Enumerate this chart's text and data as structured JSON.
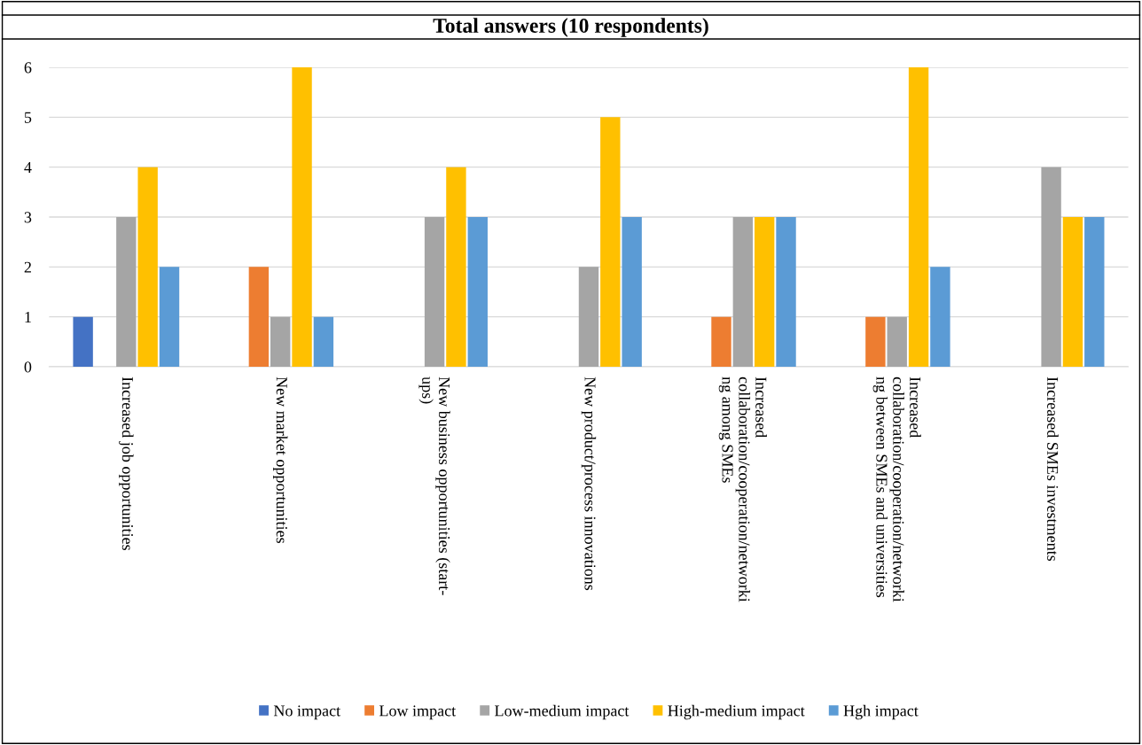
{
  "chart_data": {
    "type": "bar",
    "title": "Total answers (10 respondents)",
    "categories": [
      "Increased job opportunities",
      "New market opportunities",
      "New business opportunities (start-\nups)",
      "New product/process innovations",
      "Increased\ncollaboration/cooperation/networki\nng among SMEs",
      "Increased\ncollaboration/cooperation/networki\nng between SMEs and universities",
      "Increased SMEs investments"
    ],
    "series": [
      {
        "name": "No impact",
        "color": "#4472c4",
        "values": [
          1,
          0,
          0,
          0,
          0,
          0,
          0
        ]
      },
      {
        "name": "Low impact",
        "color": "#ed7d31",
        "values": [
          0,
          2,
          0,
          0,
          1,
          1,
          0
        ]
      },
      {
        "name": "Low-medium impact",
        "color": "#a5a5a5",
        "values": [
          3,
          1,
          3,
          2,
          3,
          1,
          4
        ]
      },
      {
        "name": "High-medium impact",
        "color": "#ffc000",
        "values": [
          4,
          6,
          4,
          5,
          3,
          6,
          3
        ]
      },
      {
        "name": "Hgh impact",
        "color": "#5b9bd5",
        "values": [
          2,
          1,
          3,
          3,
          3,
          2,
          3
        ]
      }
    ],
    "ylim": [
      0,
      6
    ],
    "yticks": [
      0,
      1,
      2,
      3,
      4,
      5,
      6
    ],
    "grid": "y",
    "legend": "bottom"
  }
}
